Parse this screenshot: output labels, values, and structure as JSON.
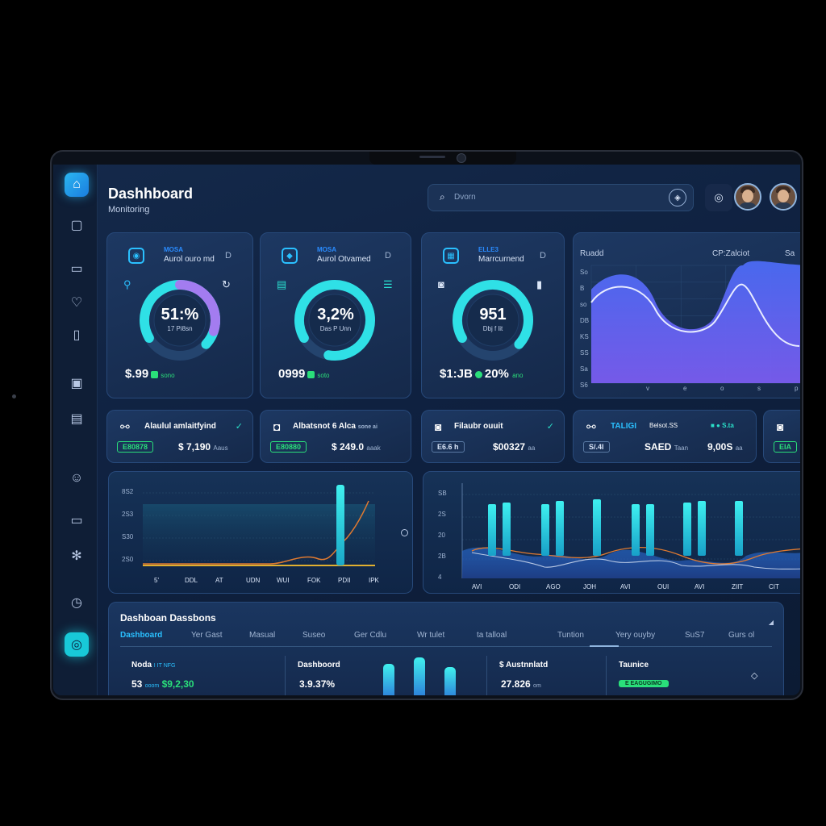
{
  "header": {
    "title": "Dashhboard",
    "subtitle": "Monitoring",
    "search_placeholder": "Dvorn"
  },
  "sidebar": {
    "icons": [
      "home-icon",
      "chat-icon",
      "monitor-icon",
      "shield-icon",
      "book-icon",
      "box-icon",
      "grid-icon",
      "user-icon",
      "card-icon",
      "settings-icon",
      "clock-icon",
      "power-icon"
    ]
  },
  "kpis": [
    {
      "top": "MOSA",
      "label": "Aurol ouro md",
      "d": "D",
      "value": "51:%",
      "sub": "17 Pi8sn",
      "bottom": "$.99",
      "small": "sono",
      "percent": 70,
      "arc_color": "#a37cf0"
    },
    {
      "top": "MOSA",
      "label": "Aurol Otvamed",
      "d": "D",
      "value": "3,2%",
      "sub": "Das P Unn",
      "bottom": "0999",
      "small": "soto",
      "percent": 86,
      "arc_color": "#2fe0e6"
    },
    {
      "top": "ELLE3",
      "label": "Marrcurnend",
      "d": "D",
      "value": "951",
      "sub": "Dbj f lit",
      "bottom": "$1:JB",
      "small": "ano",
      "bottom2": "20%",
      "percent": 70,
      "arc_color": "#2fe0e6"
    }
  ],
  "area_chart": {
    "left_label": "Ruadd",
    "mid_label": "CP:Zalciot",
    "right_label": "Sa",
    "y_ticks": [
      "So",
      "B",
      "so",
      "DB",
      "KS",
      "SS",
      "Sa",
      "S6"
    ],
    "x_ticks": [
      "v",
      "e",
      "o",
      "s",
      "p"
    ],
    "colors": {
      "fill_top": "#4b5ef0",
      "fill_bottom": "#7b5cf0",
      "line": "#e8ecff"
    }
  },
  "stats": [
    {
      "name": "Alaulul amlaitfyind",
      "chip": "E80878",
      "amt": "$ 7,190",
      "amt_sub": "Aaus"
    },
    {
      "name": "Albatsnot 6 Alca",
      "chip": "E80880",
      "amt": "$ 249.0",
      "amt_sub": "aaak",
      "tag": "sone ai"
    },
    {
      "name": "Filaubr ouuit",
      "chip": "E6.6 h",
      "amt": "$00327",
      "amt_sub": "aa"
    },
    {
      "name": "TALIGI",
      "name2": "Belsot.SS",
      "chip": "S/.4I",
      "amt": "SAED",
      "amt_sub": "Taan",
      "tag": "S.ta",
      "amt2": "9,00S",
      "amt2_sub": "aa"
    },
    {
      "name": "",
      "chip": "EIA"
    }
  ],
  "chart_left": {
    "y_ticks": [
      "8S2",
      "2S3",
      "S30",
      "2S0"
    ],
    "x_ticks": [
      "5'",
      "DDL",
      "AT",
      "UDN",
      "WUI",
      "FOK",
      "PDII",
      "IPK"
    ]
  },
  "chart_right": {
    "y_ticks": [
      "SB",
      "2S",
      "20",
      "2B",
      "4"
    ],
    "x_ticks": [
      "AVI",
      "ODI",
      "AGO",
      "JOH",
      "AVI",
      "OUI",
      "AVI",
      "ZIIT",
      "CIT"
    ]
  },
  "bottom_panel": {
    "title": "Dashboan Dassbons",
    "tabs": [
      "Dashboard",
      "Yer Gast",
      "Masual",
      "Suseo",
      "Ger Cdlu",
      "Wr tulet",
      "ta talloal",
      "Tuntion",
      "Yery ouyby",
      "SuS7",
      "Gurs ol"
    ],
    "active_tab": 0,
    "cols": [
      {
        "header": "Noda",
        "header_tag": "I IT NFG",
        "value": "53",
        "value_tag": "ooom",
        "value_g": "$9,2,30"
      },
      {
        "header": "Dashboord",
        "value": "3.9.37%"
      },
      {
        "header": "$ Austnnlatd",
        "value": "27.826",
        "value_tag": "om"
      },
      {
        "header": "Taunice",
        "chip": "E EAGUGIMO"
      }
    ]
  }
}
